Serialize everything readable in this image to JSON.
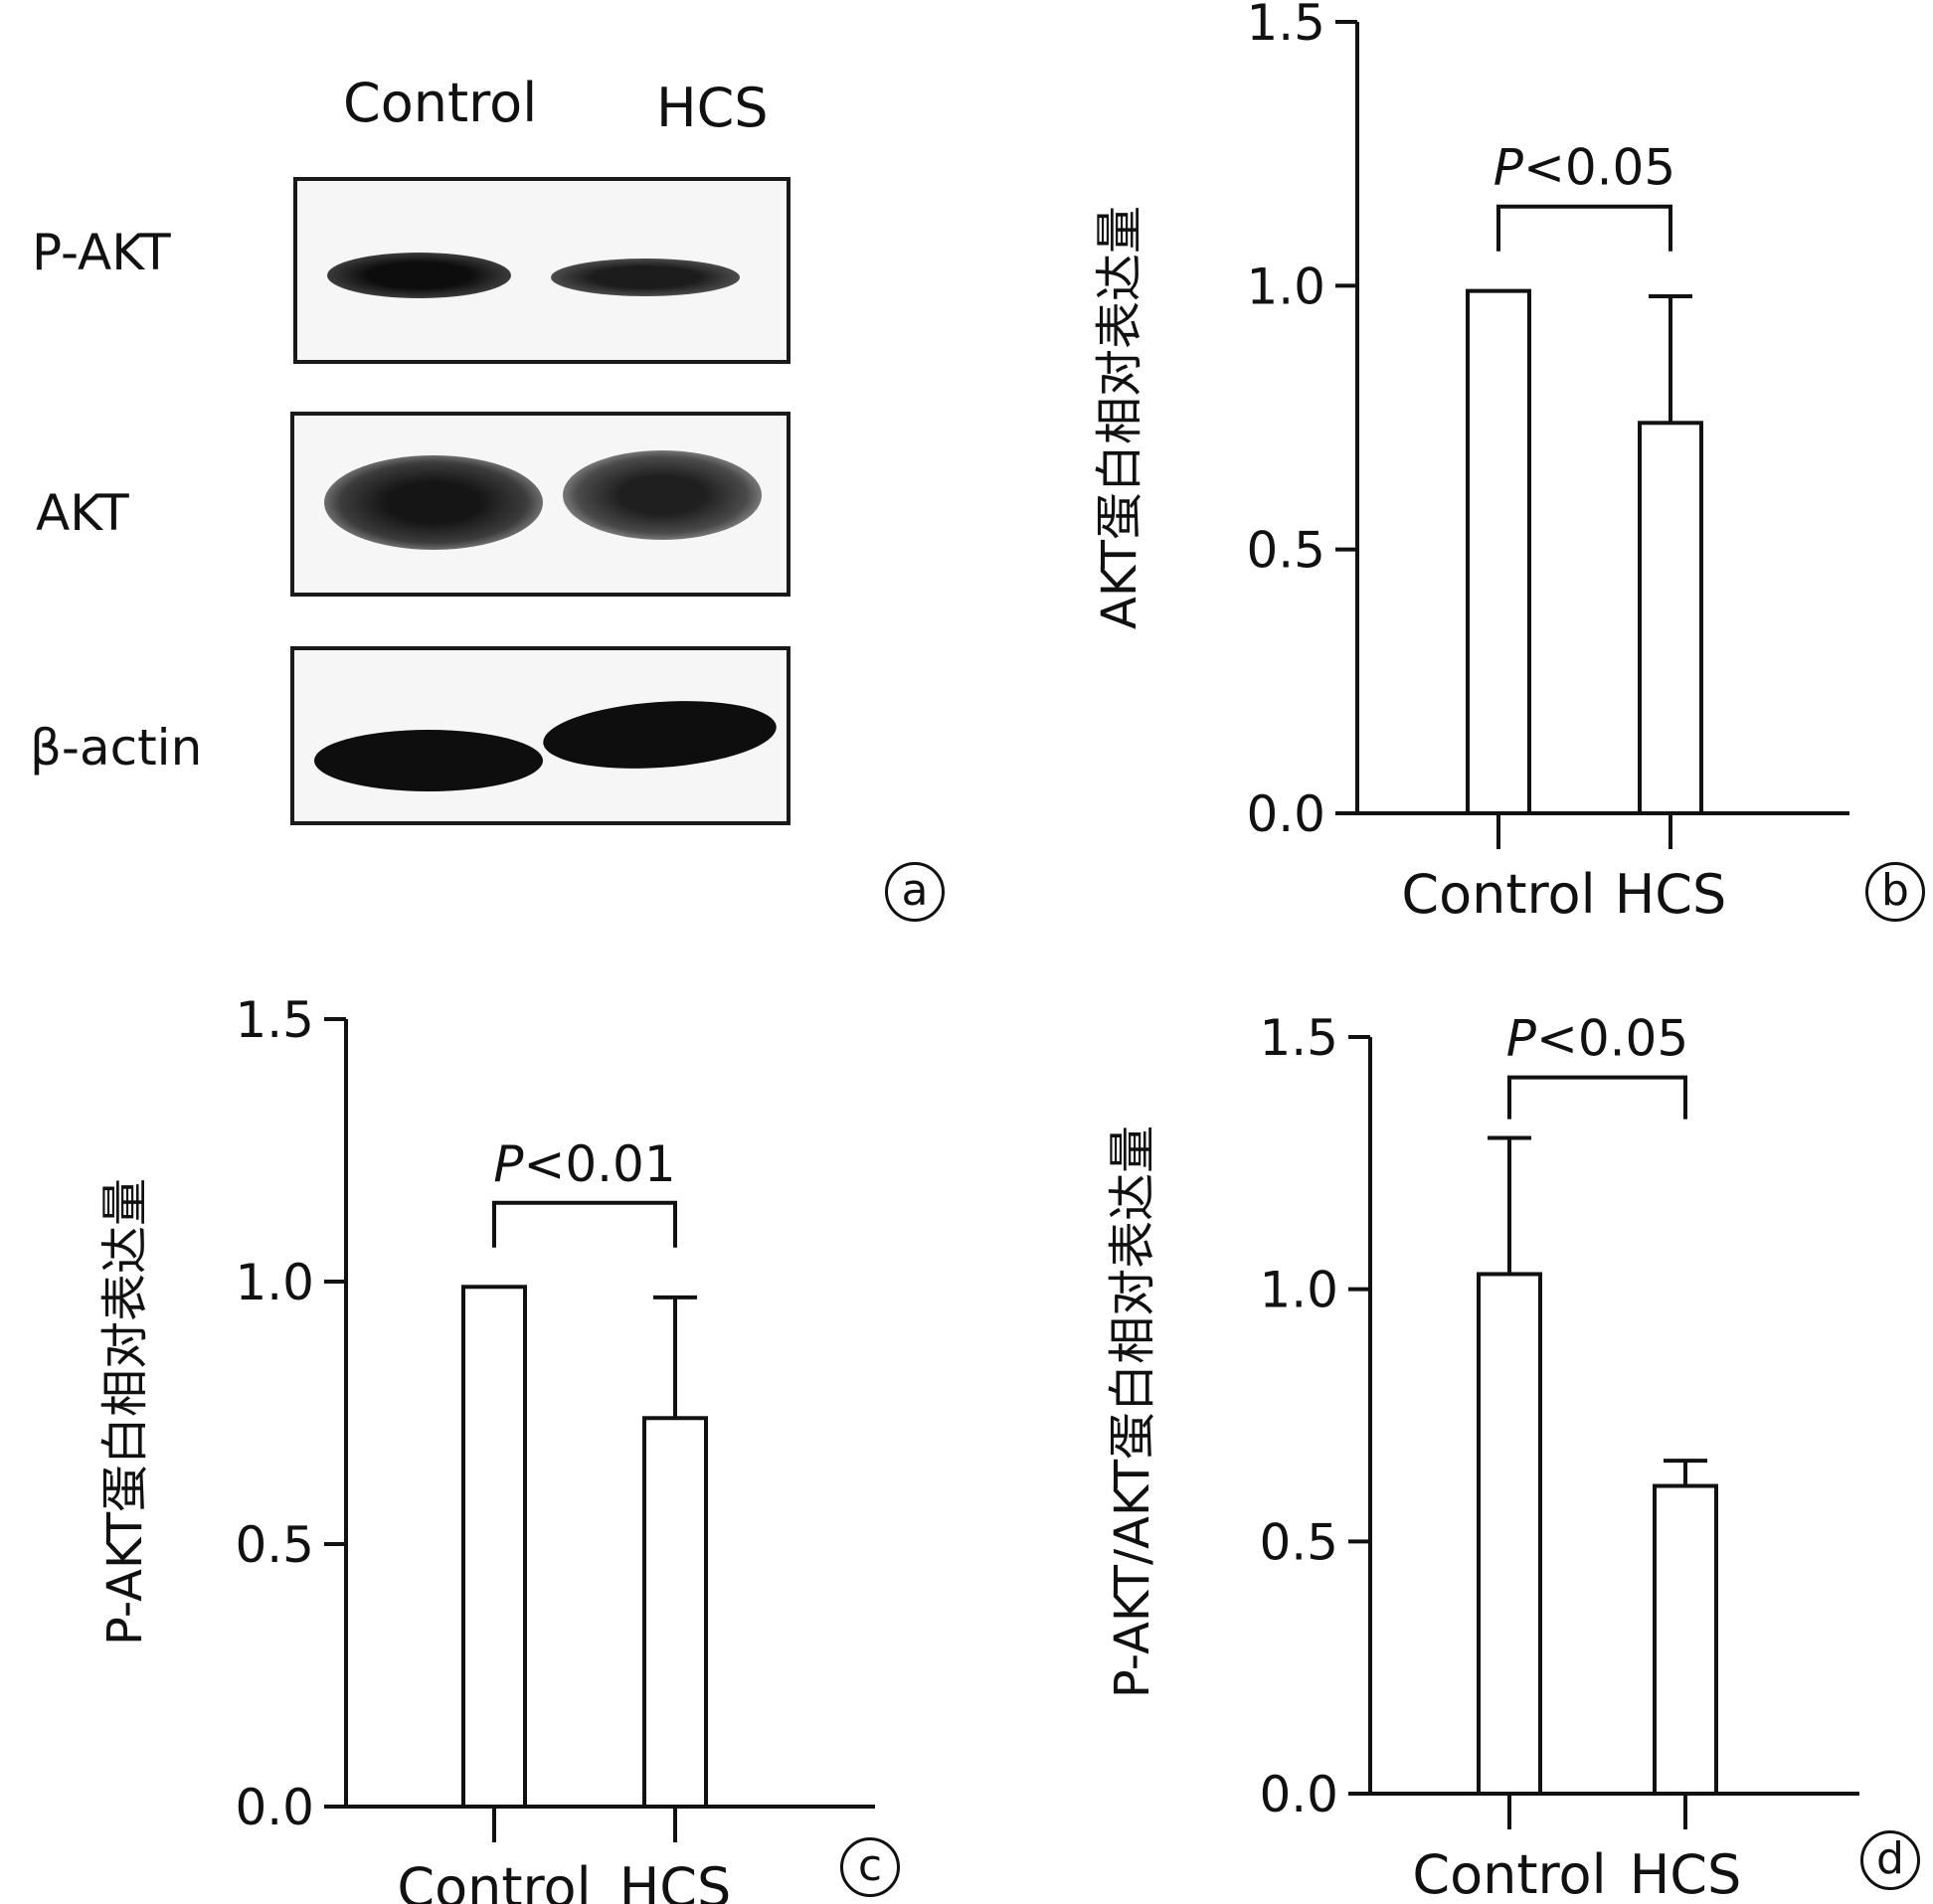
{
  "panel_a": {
    "letter": "a",
    "lanes": [
      "Control",
      "HCS"
    ],
    "rows": [
      "P-AKT",
      "AKT",
      "β-actin"
    ]
  },
  "panel_b": {
    "letter": "b"
  },
  "panel_c": {
    "letter": "c"
  },
  "panel_d": {
    "letter": "d"
  },
  "chart_data": [
    {
      "panel": "b",
      "type": "bar",
      "categories": [
        "Control",
        "HCS"
      ],
      "values": [
        0.99,
        0.74
      ],
      "error_upper": [
        0.99,
        0.98
      ],
      "ylabel": "AKT蛋白相对表达量",
      "ylim": [
        0,
        1.5
      ],
      "yticks": [
        "0.0",
        "0.5",
        "1.0",
        "1.5"
      ],
      "significance": {
        "text_prefix": "P",
        "text_suffix": "<0.05",
        "y": 1.15
      }
    },
    {
      "panel": "c",
      "type": "bar",
      "categories": [
        "Control",
        "HCS"
      ],
      "values": [
        0.99,
        0.74
      ],
      "error_upper": [
        0.99,
        0.97
      ],
      "ylabel": "P-AKT蛋白相对表达量",
      "ylim": [
        0,
        1.5
      ],
      "yticks": [
        "0.0",
        "0.5",
        "1.0",
        "1.5"
      ],
      "significance": {
        "text_prefix": "P",
        "text_suffix": "<0.01",
        "y": 1.15
      }
    },
    {
      "panel": "d",
      "type": "bar",
      "categories": [
        "Control",
        "HCS"
      ],
      "values": [
        1.03,
        0.61
      ],
      "error_upper": [
        1.3,
        0.66
      ],
      "ylabel": "P-AKT/AKT蛋白相对表达量",
      "ylim": [
        0,
        1.5
      ],
      "yticks": [
        "0.0",
        "0.5",
        "1.0",
        "1.5"
      ],
      "significance": {
        "text_prefix": "P",
        "text_suffix": "<0.05",
        "y": 1.42
      }
    }
  ]
}
